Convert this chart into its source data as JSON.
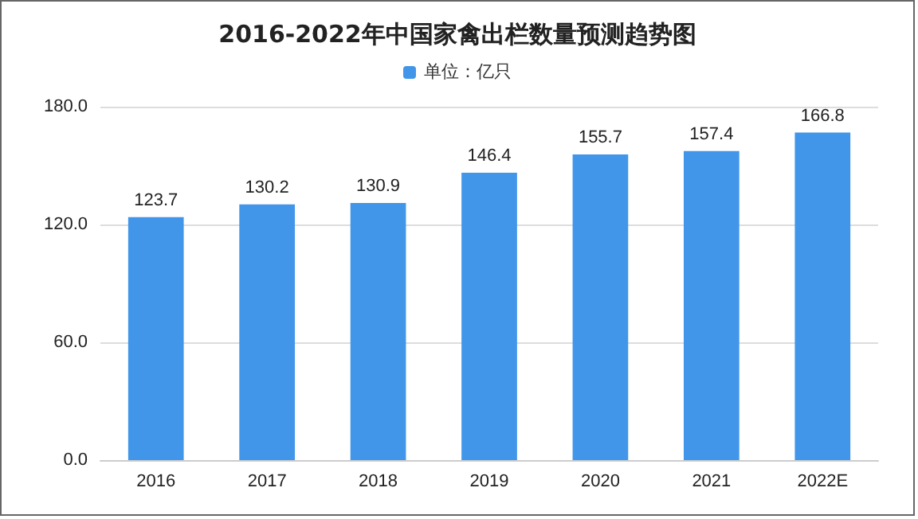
{
  "chart_data": {
    "type": "bar",
    "title": "2016-2022年中国家禽出栏数量预测趋势图",
    "categories": [
      "2016",
      "2017",
      "2018",
      "2019",
      "2020",
      "2021",
      "2022E"
    ],
    "series": [
      {
        "name": "单位：亿只",
        "color": "#4196ea",
        "values": [
          123.7,
          130.2,
          130.9,
          146.4,
          155.7,
          157.4,
          166.8
        ]
      }
    ],
    "ylim": [
      0,
      180
    ],
    "yticks": [
      {
        "value": 0,
        "label": "0.0"
      },
      {
        "value": 60,
        "label": "60.0"
      },
      {
        "value": 120,
        "label": "120.0"
      },
      {
        "value": 180,
        "label": "180.0"
      }
    ],
    "grid": "y",
    "legend": "top",
    "data_labels": true
  }
}
